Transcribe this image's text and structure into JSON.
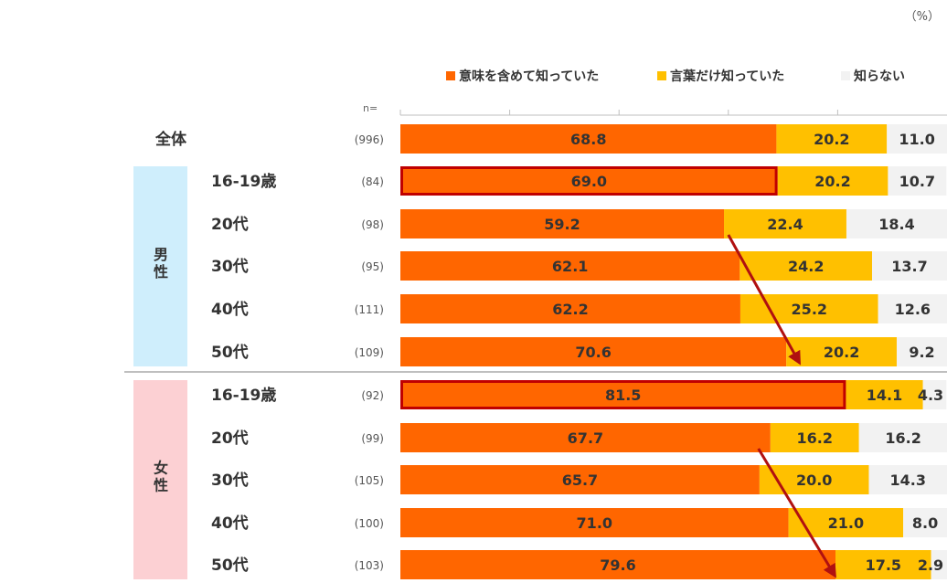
{
  "unit_label": "（%）",
  "n_header": "n=",
  "chart_data": {
    "type": "bar",
    "orientation": "horizontal",
    "stacked": true,
    "xlim": [
      0,
      100
    ],
    "grid": false,
    "legend_position": "top",
    "colors": {
      "series0": "#ff6600",
      "series1": "#ffc000",
      "series2": "#f2f2f2",
      "highlight": "#c00000",
      "arrow": "#b01010",
      "male_band": "#cfeefc",
      "female_band": "#fcd0d3"
    },
    "legend": [
      {
        "name": "意味を含めて知っていた",
        "color": "#ff6600"
      },
      {
        "name": "言葉だけ知っていた",
        "color": "#ffc000"
      },
      {
        "name": "知らない",
        "color": "#f2f2f2"
      }
    ],
    "groups": [
      {
        "label": "",
        "rows": [
          0
        ]
      },
      {
        "label": "男性",
        "rows": [
          1,
          2,
          3,
          4,
          5
        ]
      },
      {
        "label": "女性",
        "rows": [
          6,
          7,
          8,
          9,
          10
        ]
      }
    ],
    "rows": [
      {
        "label": "全体",
        "n": "(996)",
        "values": [
          68.8,
          20.2,
          11.0
        ],
        "labels": [
          "68.8",
          "20.2",
          "11.0"
        ]
      },
      {
        "label": "16-19歳",
        "n": "(84)",
        "values": [
          69.0,
          20.2,
          10.7
        ],
        "labels": [
          "69.0",
          "20.2",
          "10.7"
        ],
        "highlight": true
      },
      {
        "label": "20代",
        "n": "(98)",
        "values": [
          59.2,
          22.4,
          18.4
        ],
        "labels": [
          "59.2",
          "22.4",
          "18.4"
        ]
      },
      {
        "label": "30代",
        "n": "(95)",
        "values": [
          62.1,
          24.2,
          13.7
        ],
        "labels": [
          "62.1",
          "24.2",
          "13.7"
        ]
      },
      {
        "label": "40代",
        "n": "(111)",
        "values": [
          62.2,
          25.2,
          12.6
        ],
        "labels": [
          "62.2",
          "25.2",
          "12.6"
        ]
      },
      {
        "label": "50代",
        "n": "(109)",
        "values": [
          70.6,
          20.2,
          9.2
        ],
        "labels": [
          "70.6",
          "20.2",
          "9.2"
        ]
      },
      {
        "label": "16-19歳",
        "n": "(92)",
        "values": [
          81.5,
          14.1,
          4.3
        ],
        "labels": [
          "81.5",
          "14.1",
          "4.3"
        ],
        "highlight": true
      },
      {
        "label": "20代",
        "n": "(99)",
        "values": [
          67.7,
          16.2,
          16.2
        ],
        "labels": [
          "67.7",
          "16.2",
          "16.2"
        ]
      },
      {
        "label": "30代",
        "n": "(105)",
        "values": [
          65.7,
          20.0,
          14.3
        ],
        "labels": [
          "65.7",
          "20.0",
          "14.3"
        ]
      },
      {
        "label": "40代",
        "n": "(100)",
        "values": [
          71.0,
          21.0,
          8.0
        ],
        "labels": [
          "71.0",
          "21.0",
          "8.0"
        ]
      },
      {
        "label": "50代",
        "n": "(103)",
        "values": [
          79.6,
          17.5,
          2.9
        ],
        "labels": [
          "79.6",
          "17.5",
          "2.9"
        ]
      }
    ],
    "arrows": [
      {
        "from": {
          "row": 2,
          "value": 60
        },
        "to": {
          "row": 5,
          "value": 73
        }
      },
      {
        "from": {
          "row": 7,
          "value": 65.5
        },
        "to": {
          "row": 10,
          "value": 79.5
        }
      }
    ]
  }
}
